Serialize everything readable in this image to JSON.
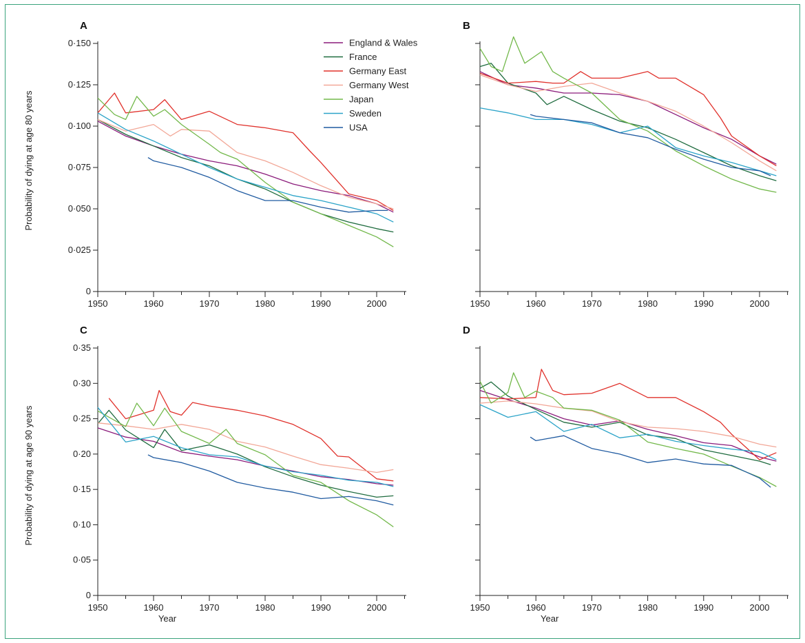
{
  "legend": [
    "England & Wales",
    "France",
    "Germany East",
    "Germany West",
    "Japan",
    "Sweden",
    "USA"
  ],
  "colors": {
    "England & Wales": "#8a1a7a",
    "France": "#1e6b3e",
    "Germany East": "#e0302a",
    "Germany West": "#f2a797",
    "Japan": "#72b84a",
    "Sweden": "#2aa3c8",
    "USA": "#1f5aa0"
  },
  "axes": {
    "x_title": "Year",
    "y_title_top": "Probability of dying at age 80 years",
    "y_title_bottom": "Probability of dying at age 90 years",
    "x_ticks": [
      1950,
      1960,
      1970,
      1980,
      1990,
      2000
    ],
    "y_ticks_top": [
      "0",
      "0·025",
      "0·050",
      "0·075",
      "0·100",
      "0·125",
      "0·150"
    ],
    "y_ticks_bottom": [
      "0",
      "0·05",
      "0·10",
      "0·15",
      "0·20",
      "0·25",
      "0·30",
      "0·35"
    ]
  },
  "chart_data": [
    {
      "panel": "A",
      "type": "line",
      "xlabel": "",
      "ylabel": "Probability of dying at age 80 years",
      "xlim": [
        1950,
        2005
      ],
      "ylim": [
        0,
        0.15
      ],
      "legend_position": "top-right",
      "grid": false,
      "series": [
        {
          "name": "England & Wales",
          "x": [
            1950,
            1955,
            1960,
            1965,
            1970,
            1975,
            1980,
            1985,
            1990,
            1995,
            2000,
            2003
          ],
          "y": [
            0.103,
            0.094,
            0.088,
            0.083,
            0.079,
            0.076,
            0.071,
            0.065,
            0.061,
            0.058,
            0.053,
            0.048
          ]
        },
        {
          "name": "France",
          "x": [
            1950,
            1955,
            1960,
            1965,
            1970,
            1975,
            1980,
            1985,
            1990,
            1995,
            2000,
            2003
          ],
          "y": [
            0.104,
            0.095,
            0.088,
            0.081,
            0.076,
            0.068,
            0.062,
            0.054,
            0.047,
            0.042,
            0.038,
            0.036
          ]
        },
        {
          "name": "Germany East",
          "x": [
            1950,
            1953,
            1955,
            1960,
            1962,
            1965,
            1970,
            1975,
            1980,
            1985,
            1988,
            1990,
            1995,
            2000,
            2003
          ],
          "y": [
            0.108,
            0.12,
            0.108,
            0.11,
            0.116,
            0.104,
            0.109,
            0.101,
            0.099,
            0.096,
            0.085,
            0.078,
            0.059,
            0.055,
            0.049
          ]
        },
        {
          "name": "Germany West",
          "x": [
            1950,
            1955,
            1960,
            1963,
            1965,
            1970,
            1975,
            1980,
            1985,
            1990,
            1995,
            2000,
            2003
          ],
          "y": [
            0.104,
            0.097,
            0.101,
            0.094,
            0.098,
            0.097,
            0.084,
            0.079,
            0.072,
            0.064,
            0.057,
            0.053,
            0.05
          ]
        },
        {
          "name": "Japan",
          "x": [
            1950,
            1953,
            1955,
            1957,
            1960,
            1962,
            1965,
            1970,
            1972,
            1975,
            1980,
            1985,
            1990,
            1995,
            2000,
            2003
          ],
          "y": [
            0.117,
            0.107,
            0.104,
            0.118,
            0.106,
            0.11,
            0.101,
            0.089,
            0.084,
            0.08,
            0.066,
            0.054,
            0.047,
            0.04,
            0.033,
            0.027
          ]
        },
        {
          "name": "Sweden",
          "x": [
            1950,
            1955,
            1960,
            1965,
            1970,
            1975,
            1980,
            1985,
            1990,
            1995,
            2000,
            2003
          ],
          "y": [
            0.108,
            0.098,
            0.091,
            0.083,
            0.075,
            0.068,
            0.063,
            0.058,
            0.055,
            0.051,
            0.047,
            0.042
          ]
        },
        {
          "name": "USA",
          "x": [
            1959,
            1960,
            1965,
            1970,
            1975,
            1980,
            1985,
            1990,
            1995,
            2000,
            2002
          ],
          "y": [
            0.081,
            0.079,
            0.075,
            0.069,
            0.061,
            0.055,
            0.055,
            0.051,
            0.048,
            0.049,
            0.049
          ]
        }
      ]
    },
    {
      "panel": "B",
      "type": "line",
      "xlabel": "",
      "ylabel": "",
      "xlim": [
        1950,
        2005
      ],
      "ylim": [
        0,
        0.15
      ],
      "grid": false,
      "series": [
        {
          "name": "England & Wales",
          "x": [
            1950,
            1955,
            1960,
            1965,
            1970,
            1975,
            1980,
            1985,
            1990,
            1995,
            2000,
            2003
          ],
          "y": [
            0.133,
            0.125,
            0.123,
            0.12,
            0.12,
            0.119,
            0.115,
            0.107,
            0.099,
            0.092,
            0.082,
            0.077
          ]
        },
        {
          "name": "France",
          "x": [
            1950,
            1952,
            1955,
            1960,
            1962,
            1965,
            1970,
            1975,
            1980,
            1985,
            1990,
            1995,
            2000,
            2003
          ],
          "y": [
            0.136,
            0.138,
            0.126,
            0.12,
            0.113,
            0.118,
            0.11,
            0.103,
            0.099,
            0.092,
            0.084,
            0.076,
            0.07,
            0.067
          ]
        },
        {
          "name": "Germany East",
          "x": [
            1950,
            1955,
            1960,
            1963,
            1965,
            1968,
            1970,
            1975,
            1980,
            1982,
            1985,
            1990,
            1993,
            1995,
            2000,
            2003
          ],
          "y": [
            0.132,
            0.126,
            0.127,
            0.126,
            0.126,
            0.133,
            0.129,
            0.129,
            0.133,
            0.129,
            0.129,
            0.119,
            0.105,
            0.094,
            0.082,
            0.076
          ]
        },
        {
          "name": "Germany West",
          "x": [
            1950,
            1955,
            1960,
            1965,
            1970,
            1975,
            1980,
            1985,
            1990,
            1995,
            2000,
            2003
          ],
          "y": [
            0.131,
            0.125,
            0.121,
            0.124,
            0.126,
            0.12,
            0.115,
            0.109,
            0.1,
            0.09,
            0.079,
            0.073
          ]
        },
        {
          "name": "Japan",
          "x": [
            1950,
            1952,
            1954,
            1956,
            1958,
            1961,
            1963,
            1965,
            1970,
            1975,
            1980,
            1985,
            1990,
            1995,
            2000,
            2003
          ],
          "y": [
            0.147,
            0.136,
            0.133,
            0.154,
            0.138,
            0.145,
            0.133,
            0.129,
            0.12,
            0.104,
            0.097,
            0.085,
            0.076,
            0.068,
            0.062,
            0.06
          ]
        },
        {
          "name": "Sweden",
          "x": [
            1950,
            1955,
            1960,
            1965,
            1970,
            1975,
            1980,
            1985,
            1990,
            1995,
            2000,
            2003
          ],
          "y": [
            0.111,
            0.108,
            0.104,
            0.104,
            0.101,
            0.096,
            0.1,
            0.087,
            0.082,
            0.078,
            0.073,
            0.07
          ]
        },
        {
          "name": "USA",
          "x": [
            1959,
            1960,
            1965,
            1970,
            1975,
            1980,
            1985,
            1990,
            1995,
            2000,
            2002
          ],
          "y": [
            0.107,
            0.106,
            0.104,
            0.102,
            0.096,
            0.093,
            0.086,
            0.08,
            0.075,
            0.073,
            0.07
          ]
        }
      ]
    },
    {
      "panel": "C",
      "type": "line",
      "xlabel": "Year",
      "ylabel": "Probability of dying at age 90 years",
      "xlim": [
        1950,
        2005
      ],
      "ylim": [
        0,
        0.35
      ],
      "grid": false,
      "series": [
        {
          "name": "England & Wales",
          "x": [
            1950,
            1955,
            1960,
            1965,
            1970,
            1975,
            1980,
            1985,
            1990,
            1995,
            2000,
            2003
          ],
          "y": [
            0.237,
            0.224,
            0.218,
            0.203,
            0.197,
            0.192,
            0.183,
            0.176,
            0.168,
            0.164,
            0.158,
            0.156
          ]
        },
        {
          "name": "France",
          "x": [
            1950,
            1952,
            1955,
            1960,
            1962,
            1965,
            1970,
            1975,
            1980,
            1985,
            1990,
            1995,
            2000,
            2003
          ],
          "y": [
            0.243,
            0.262,
            0.234,
            0.209,
            0.235,
            0.205,
            0.213,
            0.2,
            0.182,
            0.168,
            0.156,
            0.147,
            0.139,
            0.141
          ]
        },
        {
          "name": "Germany East",
          "x": [
            1952,
            1955,
            1960,
            1961,
            1963,
            1965,
            1967,
            1970,
            1975,
            1980,
            1985,
            1990,
            1993,
            1995,
            2000,
            2003
          ],
          "y": [
            0.279,
            0.25,
            0.262,
            0.29,
            0.26,
            0.255,
            0.273,
            0.268,
            0.262,
            0.254,
            0.242,
            0.222,
            0.197,
            0.196,
            0.165,
            0.162
          ]
        },
        {
          "name": "Germany West",
          "x": [
            1950,
            1955,
            1960,
            1965,
            1970,
            1975,
            1980,
            1985,
            1990,
            1995,
            2000,
            2003
          ],
          "y": [
            0.244,
            0.24,
            0.235,
            0.242,
            0.235,
            0.218,
            0.21,
            0.197,
            0.185,
            0.18,
            0.174,
            0.178
          ]
        },
        {
          "name": "Japan",
          "x": [
            1950,
            1955,
            1957,
            1960,
            1962,
            1965,
            1970,
            1973,
            1975,
            1980,
            1985,
            1990,
            1995,
            2000,
            2003
          ],
          "y": [
            0.261,
            0.239,
            0.272,
            0.24,
            0.265,
            0.232,
            0.215,
            0.235,
            0.215,
            0.199,
            0.17,
            0.16,
            0.134,
            0.114,
            0.097
          ]
        },
        {
          "name": "Sweden",
          "x": [
            1950,
            1955,
            1960,
            1965,
            1970,
            1975,
            1980,
            1985,
            1990,
            1995,
            2000,
            2003
          ],
          "y": [
            0.266,
            0.217,
            0.225,
            0.209,
            0.199,
            0.196,
            0.183,
            0.175,
            0.17,
            0.163,
            0.16,
            0.154
          ]
        },
        {
          "name": "USA",
          "x": [
            1959,
            1960,
            1965,
            1970,
            1975,
            1980,
            1985,
            1990,
            1995,
            2000,
            2003
          ],
          "y": [
            0.199,
            0.195,
            0.188,
            0.176,
            0.16,
            0.152,
            0.146,
            0.137,
            0.14,
            0.134,
            0.128
          ]
        }
      ]
    },
    {
      "panel": "D",
      "type": "line",
      "xlabel": "Year",
      "ylabel": "",
      "xlim": [
        1950,
        2005
      ],
      "ylim": [
        0,
        0.35
      ],
      "grid": false,
      "series": [
        {
          "name": "England & Wales",
          "x": [
            1950,
            1955,
            1960,
            1965,
            1970,
            1975,
            1980,
            1985,
            1990,
            1995,
            2000,
            2003
          ],
          "y": [
            0.29,
            0.277,
            0.265,
            0.25,
            0.241,
            0.247,
            0.235,
            0.226,
            0.216,
            0.212,
            0.196,
            0.19
          ]
        },
        {
          "name": "France",
          "x": [
            1950,
            1952,
            1955,
            1960,
            1965,
            1970,
            1975,
            1980,
            1985,
            1990,
            1995,
            2000,
            2002
          ],
          "y": [
            0.293,
            0.302,
            0.282,
            0.263,
            0.245,
            0.238,
            0.245,
            0.227,
            0.222,
            0.206,
            0.198,
            0.19,
            0.185
          ]
        },
        {
          "name": "Germany East",
          "x": [
            1950,
            1955,
            1960,
            1961,
            1963,
            1965,
            1970,
            1975,
            1980,
            1985,
            1990,
            1993,
            1995,
            2000,
            2003
          ],
          "y": [
            0.28,
            0.278,
            0.28,
            0.32,
            0.29,
            0.284,
            0.286,
            0.3,
            0.28,
            0.28,
            0.26,
            0.245,
            0.228,
            0.192,
            0.202
          ]
        },
        {
          "name": "Germany West",
          "x": [
            1950,
            1955,
            1960,
            1965,
            1970,
            1975,
            1980,
            1985,
            1990,
            1995,
            2000,
            2003
          ],
          "y": [
            0.272,
            0.275,
            0.271,
            0.265,
            0.261,
            0.246,
            0.238,
            0.236,
            0.232,
            0.225,
            0.214,
            0.21
          ]
        },
        {
          "name": "Japan",
          "x": [
            1950,
            1952,
            1955,
            1956,
            1958,
            1960,
            1963,
            1965,
            1970,
            1975,
            1980,
            1985,
            1990,
            1995,
            2000,
            2003
          ],
          "y": [
            0.303,
            0.272,
            0.287,
            0.315,
            0.28,
            0.289,
            0.28,
            0.265,
            0.262,
            0.248,
            0.217,
            0.208,
            0.2,
            0.183,
            0.167,
            0.154
          ]
        },
        {
          "name": "Sweden",
          "x": [
            1950,
            1955,
            1960,
            1965,
            1970,
            1975,
            1980,
            1985,
            1990,
            1995,
            2000,
            2003
          ],
          "y": [
            0.27,
            0.252,
            0.26,
            0.232,
            0.242,
            0.223,
            0.228,
            0.218,
            0.212,
            0.207,
            0.203,
            0.192
          ]
        },
        {
          "name": "USA",
          "x": [
            1959,
            1960,
            1965,
            1970,
            1975,
            1980,
            1985,
            1990,
            1995,
            2000,
            2002
          ],
          "y": [
            0.224,
            0.219,
            0.226,
            0.208,
            0.2,
            0.188,
            0.193,
            0.186,
            0.184,
            0.166,
            0.153
          ]
        }
      ]
    }
  ]
}
